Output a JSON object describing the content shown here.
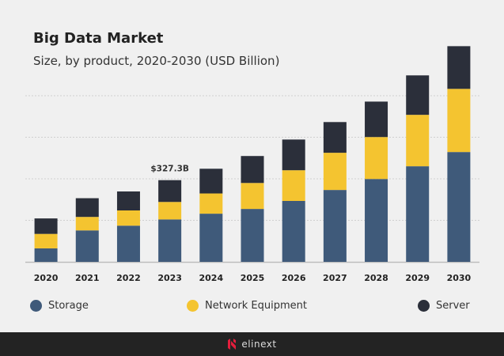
{
  "title": "Big Data Market",
  "subtitle": "Size, by product, 2020-2030 (USD Billion)",
  "chart_data": {
    "type": "bar",
    "stacked": true,
    "title": "Big Data Market",
    "subtitle": "Size, by product, 2020-2030 (USD Billion)",
    "categories": [
      "2020",
      "2021",
      "2022",
      "2023",
      "2024",
      "2025",
      "2026",
      "2027",
      "2028",
      "2029",
      "2030"
    ],
    "series": [
      {
        "name": "Storage",
        "color": "#3f5a7a",
        "values": [
          54,
          126,
          145,
          170,
          193,
          212,
          244,
          288,
          332,
          383,
          440
        ]
      },
      {
        "name": "Network Equipment",
        "color": "#f4c430",
        "values": [
          58,
          54,
          61,
          70,
          81,
          104,
          123,
          149,
          168,
          206,
          253
        ]
      },
      {
        "name": "Server",
        "color": "#2b2f3a",
        "values": [
          62,
          75,
          76,
          87.3,
          99,
          108,
          123,
          123,
          142,
          158,
          171
        ]
      }
    ],
    "annotations": [
      {
        "category": "2023",
        "text": "$327.3B"
      }
    ],
    "ylim": [
      0,
      900
    ],
    "grid": true,
    "legend": "bottom"
  },
  "footer": {
    "brand": "elinext",
    "brand_color": "#e31e3c"
  }
}
